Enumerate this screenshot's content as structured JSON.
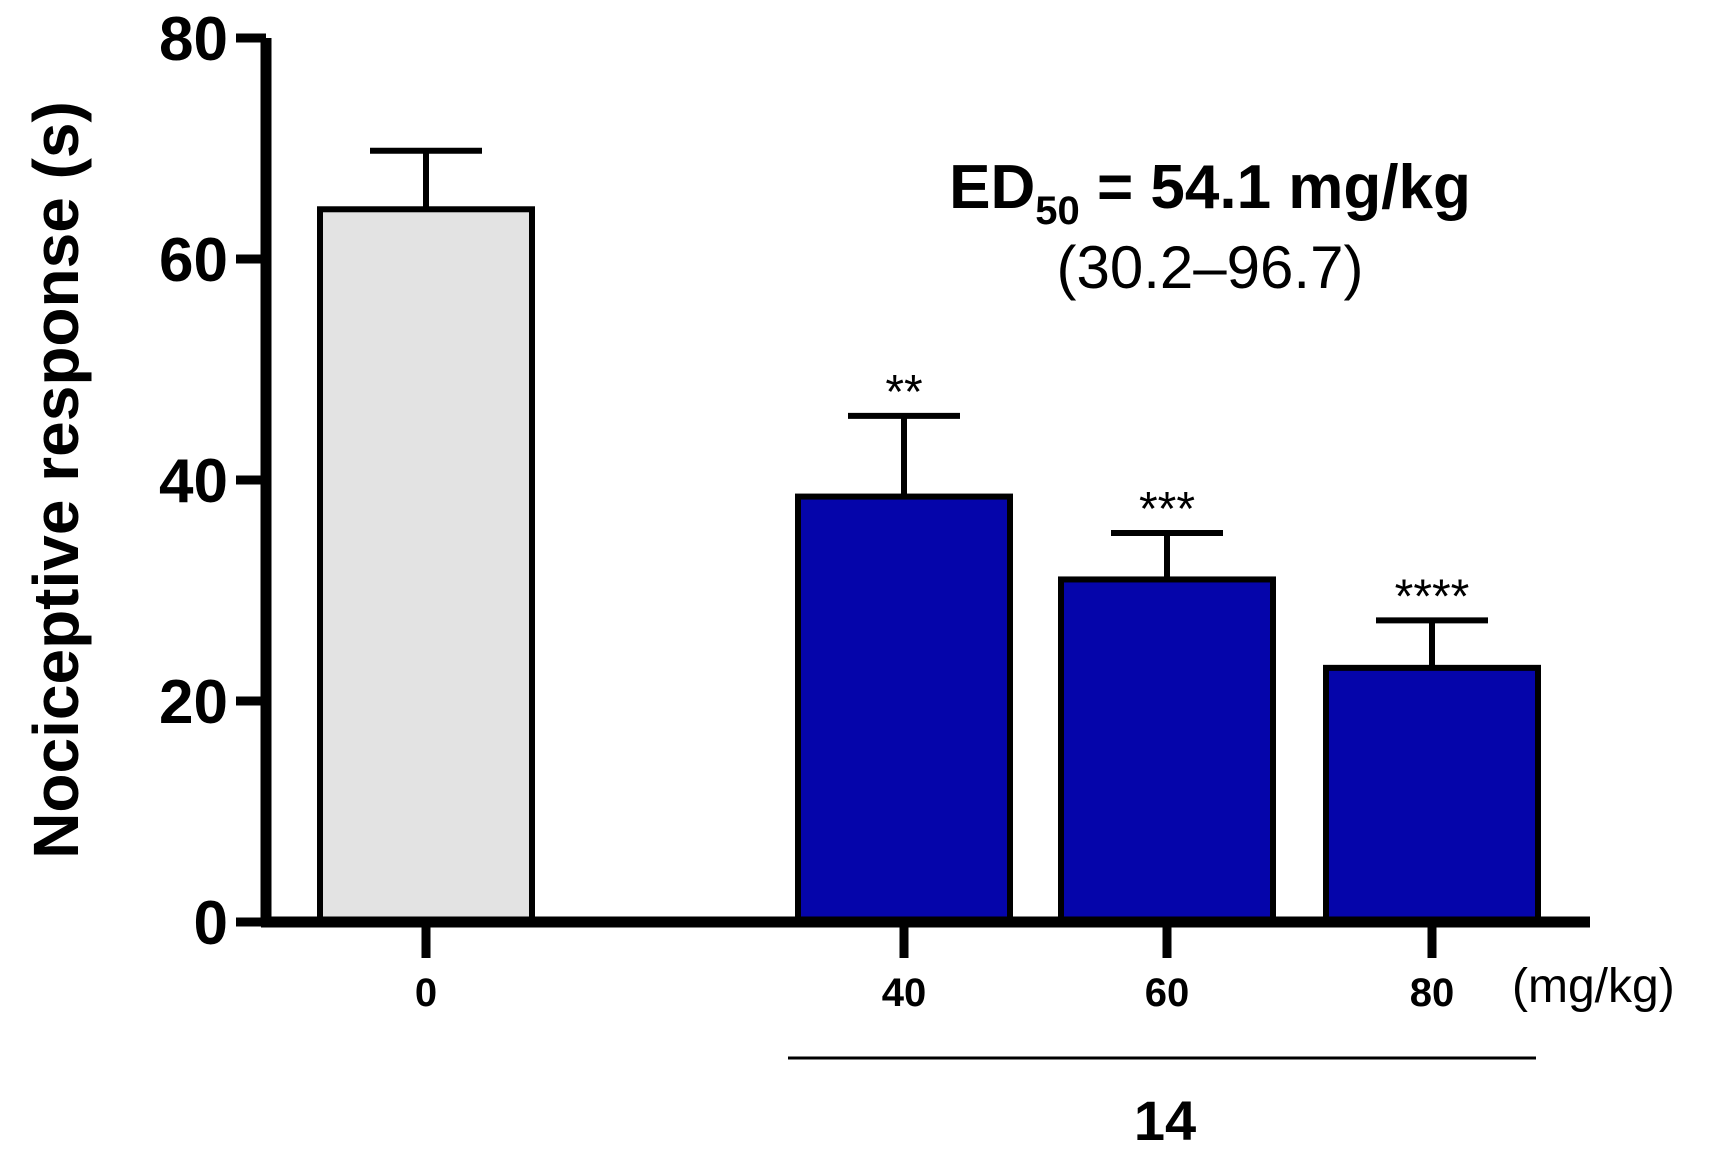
{
  "chart_data": {
    "type": "bar",
    "categories": [
      "0",
      "40",
      "60",
      "80"
    ],
    "values": [
      64.5,
      38.5,
      31.0,
      23.0
    ],
    "errors": [
      5.3,
      7.3,
      4.2,
      4.3
    ],
    "significance": [
      "",
      "**",
      "***",
      "****"
    ],
    "bar_colors": [
      "#e3e3e3",
      "#0505aa",
      "#0505aa",
      "#0505aa"
    ],
    "title": "",
    "xlabel": "",
    "ylabel": "Nociceptive response (s)",
    "ylim": [
      0,
      80
    ],
    "yticks": [
      "0",
      "20",
      "40",
      "60",
      "80"
    ],
    "x_unit": "(mg/kg)",
    "group_label": "14",
    "annotation": {
      "ed_prefix": "ED",
      "ed_subscript": "50",
      "ed_value": " = 54.1 mg/kg",
      "ci": "(30.2–96.7)"
    },
    "grid": false,
    "legend": "none"
  }
}
